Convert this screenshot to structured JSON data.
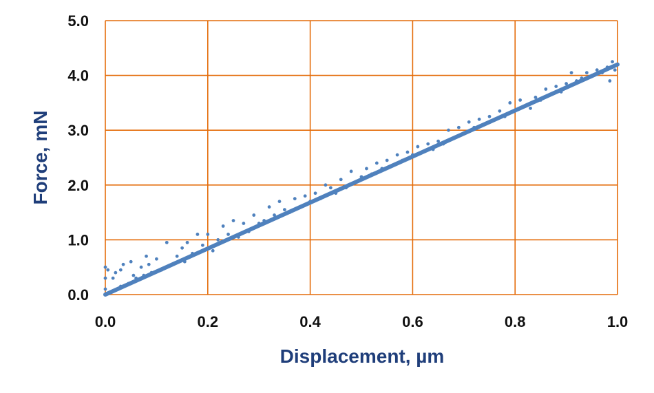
{
  "colors": {
    "grid": "#E46C0A",
    "series": "#4F81BD",
    "axis_title": "#1F3E7A",
    "tick_text": "#111111"
  },
  "chart_data": {
    "type": "scatter",
    "title": "",
    "xlabel": "Displacement, µm",
    "ylabel": "Force, mN",
    "xlim": [
      0.0,
      1.0
    ],
    "ylim": [
      0.0,
      5.0
    ],
    "grid": true,
    "x_ticks": [
      "0.0",
      "0.2",
      "0.4",
      "0.6",
      "0.8",
      "1.0"
    ],
    "y_ticks": [
      "0.0",
      "1.0",
      "2.0",
      "3.0",
      "4.0",
      "5.0"
    ],
    "series": [
      {
        "marker": "dot",
        "points": [
          [
            0.0,
            0.1
          ],
          [
            0.0,
            0.3
          ],
          [
            0.0,
            0.5
          ],
          [
            0.005,
            0.45
          ],
          [
            0.01,
            0.05
          ],
          [
            0.015,
            0.3
          ],
          [
            0.02,
            0.4
          ],
          [
            0.03,
            0.15
          ],
          [
            0.03,
            0.45
          ],
          [
            0.035,
            0.55
          ],
          [
            0.045,
            0.2
          ],
          [
            0.05,
            0.6
          ],
          [
            0.055,
            0.35
          ],
          [
            0.06,
            0.3
          ],
          [
            0.07,
            0.5
          ],
          [
            0.075,
            0.35
          ],
          [
            0.08,
            0.7
          ],
          [
            0.085,
            0.55
          ],
          [
            0.09,
            0.4
          ],
          [
            0.1,
            0.65
          ],
          [
            0.11,
            0.45
          ],
          [
            0.12,
            0.95
          ],
          [
            0.13,
            0.55
          ],
          [
            0.14,
            0.7
          ],
          [
            0.15,
            0.85
          ],
          [
            0.155,
            0.6
          ],
          [
            0.16,
            0.95
          ],
          [
            0.17,
            0.75
          ],
          [
            0.18,
            1.1
          ],
          [
            0.19,
            0.9
          ],
          [
            0.2,
            1.1
          ],
          [
            0.21,
            0.8
          ],
          [
            0.22,
            1.0
          ],
          [
            0.23,
            1.25
          ],
          [
            0.24,
            1.1
          ],
          [
            0.25,
            1.35
          ],
          [
            0.26,
            1.05
          ],
          [
            0.27,
            1.3
          ],
          [
            0.28,
            1.15
          ],
          [
            0.29,
            1.45
          ],
          [
            0.3,
            1.3
          ],
          [
            0.31,
            1.35
          ],
          [
            0.32,
            1.6
          ],
          [
            0.33,
            1.45
          ],
          [
            0.34,
            1.7
          ],
          [
            0.35,
            1.55
          ],
          [
            0.36,
            1.5
          ],
          [
            0.37,
            1.75
          ],
          [
            0.38,
            1.6
          ],
          [
            0.39,
            1.8
          ],
          [
            0.4,
            1.7
          ],
          [
            0.41,
            1.85
          ],
          [
            0.42,
            1.75
          ],
          [
            0.43,
            2.0
          ],
          [
            0.44,
            1.95
          ],
          [
            0.45,
            1.85
          ],
          [
            0.46,
            2.1
          ],
          [
            0.47,
            1.95
          ],
          [
            0.48,
            2.25
          ],
          [
            0.49,
            2.05
          ],
          [
            0.5,
            2.15
          ],
          [
            0.51,
            2.3
          ],
          [
            0.52,
            2.2
          ],
          [
            0.53,
            2.4
          ],
          [
            0.54,
            2.3
          ],
          [
            0.55,
            2.45
          ],
          [
            0.56,
            2.35
          ],
          [
            0.57,
            2.55
          ],
          [
            0.58,
            2.45
          ],
          [
            0.59,
            2.6
          ],
          [
            0.6,
            2.55
          ],
          [
            0.61,
            2.7
          ],
          [
            0.62,
            2.6
          ],
          [
            0.63,
            2.75
          ],
          [
            0.64,
            2.65
          ],
          [
            0.65,
            2.8
          ],
          [
            0.66,
            2.75
          ],
          [
            0.67,
            3.0
          ],
          [
            0.68,
            2.85
          ],
          [
            0.69,
            3.05
          ],
          [
            0.7,
            2.95
          ],
          [
            0.71,
            3.15
          ],
          [
            0.72,
            3.05
          ],
          [
            0.73,
            3.2
          ],
          [
            0.74,
            3.1
          ],
          [
            0.75,
            3.25
          ],
          [
            0.76,
            3.2
          ],
          [
            0.77,
            3.35
          ],
          [
            0.78,
            3.25
          ],
          [
            0.79,
            3.5
          ],
          [
            0.8,
            3.35
          ],
          [
            0.81,
            3.55
          ],
          [
            0.82,
            3.45
          ],
          [
            0.83,
            3.4
          ],
          [
            0.84,
            3.6
          ],
          [
            0.85,
            3.55
          ],
          [
            0.86,
            3.75
          ],
          [
            0.87,
            3.65
          ],
          [
            0.88,
            3.8
          ],
          [
            0.89,
            3.7
          ],
          [
            0.9,
            3.85
          ],
          [
            0.91,
            4.05
          ],
          [
            0.92,
            3.9
          ],
          [
            0.93,
            3.95
          ],
          [
            0.94,
            4.05
          ],
          [
            0.95,
            4.0
          ],
          [
            0.96,
            4.1
          ],
          [
            0.97,
            4.05
          ],
          [
            0.98,
            4.15
          ],
          [
            0.985,
            3.9
          ],
          [
            0.99,
            4.25
          ],
          [
            0.995,
            4.1
          ],
          [
            1.0,
            4.2
          ]
        ]
      },
      {
        "marker": "line",
        "x": [
          0.0,
          1.0
        ],
        "values": [
          0.0,
          4.2
        ]
      }
    ]
  }
}
